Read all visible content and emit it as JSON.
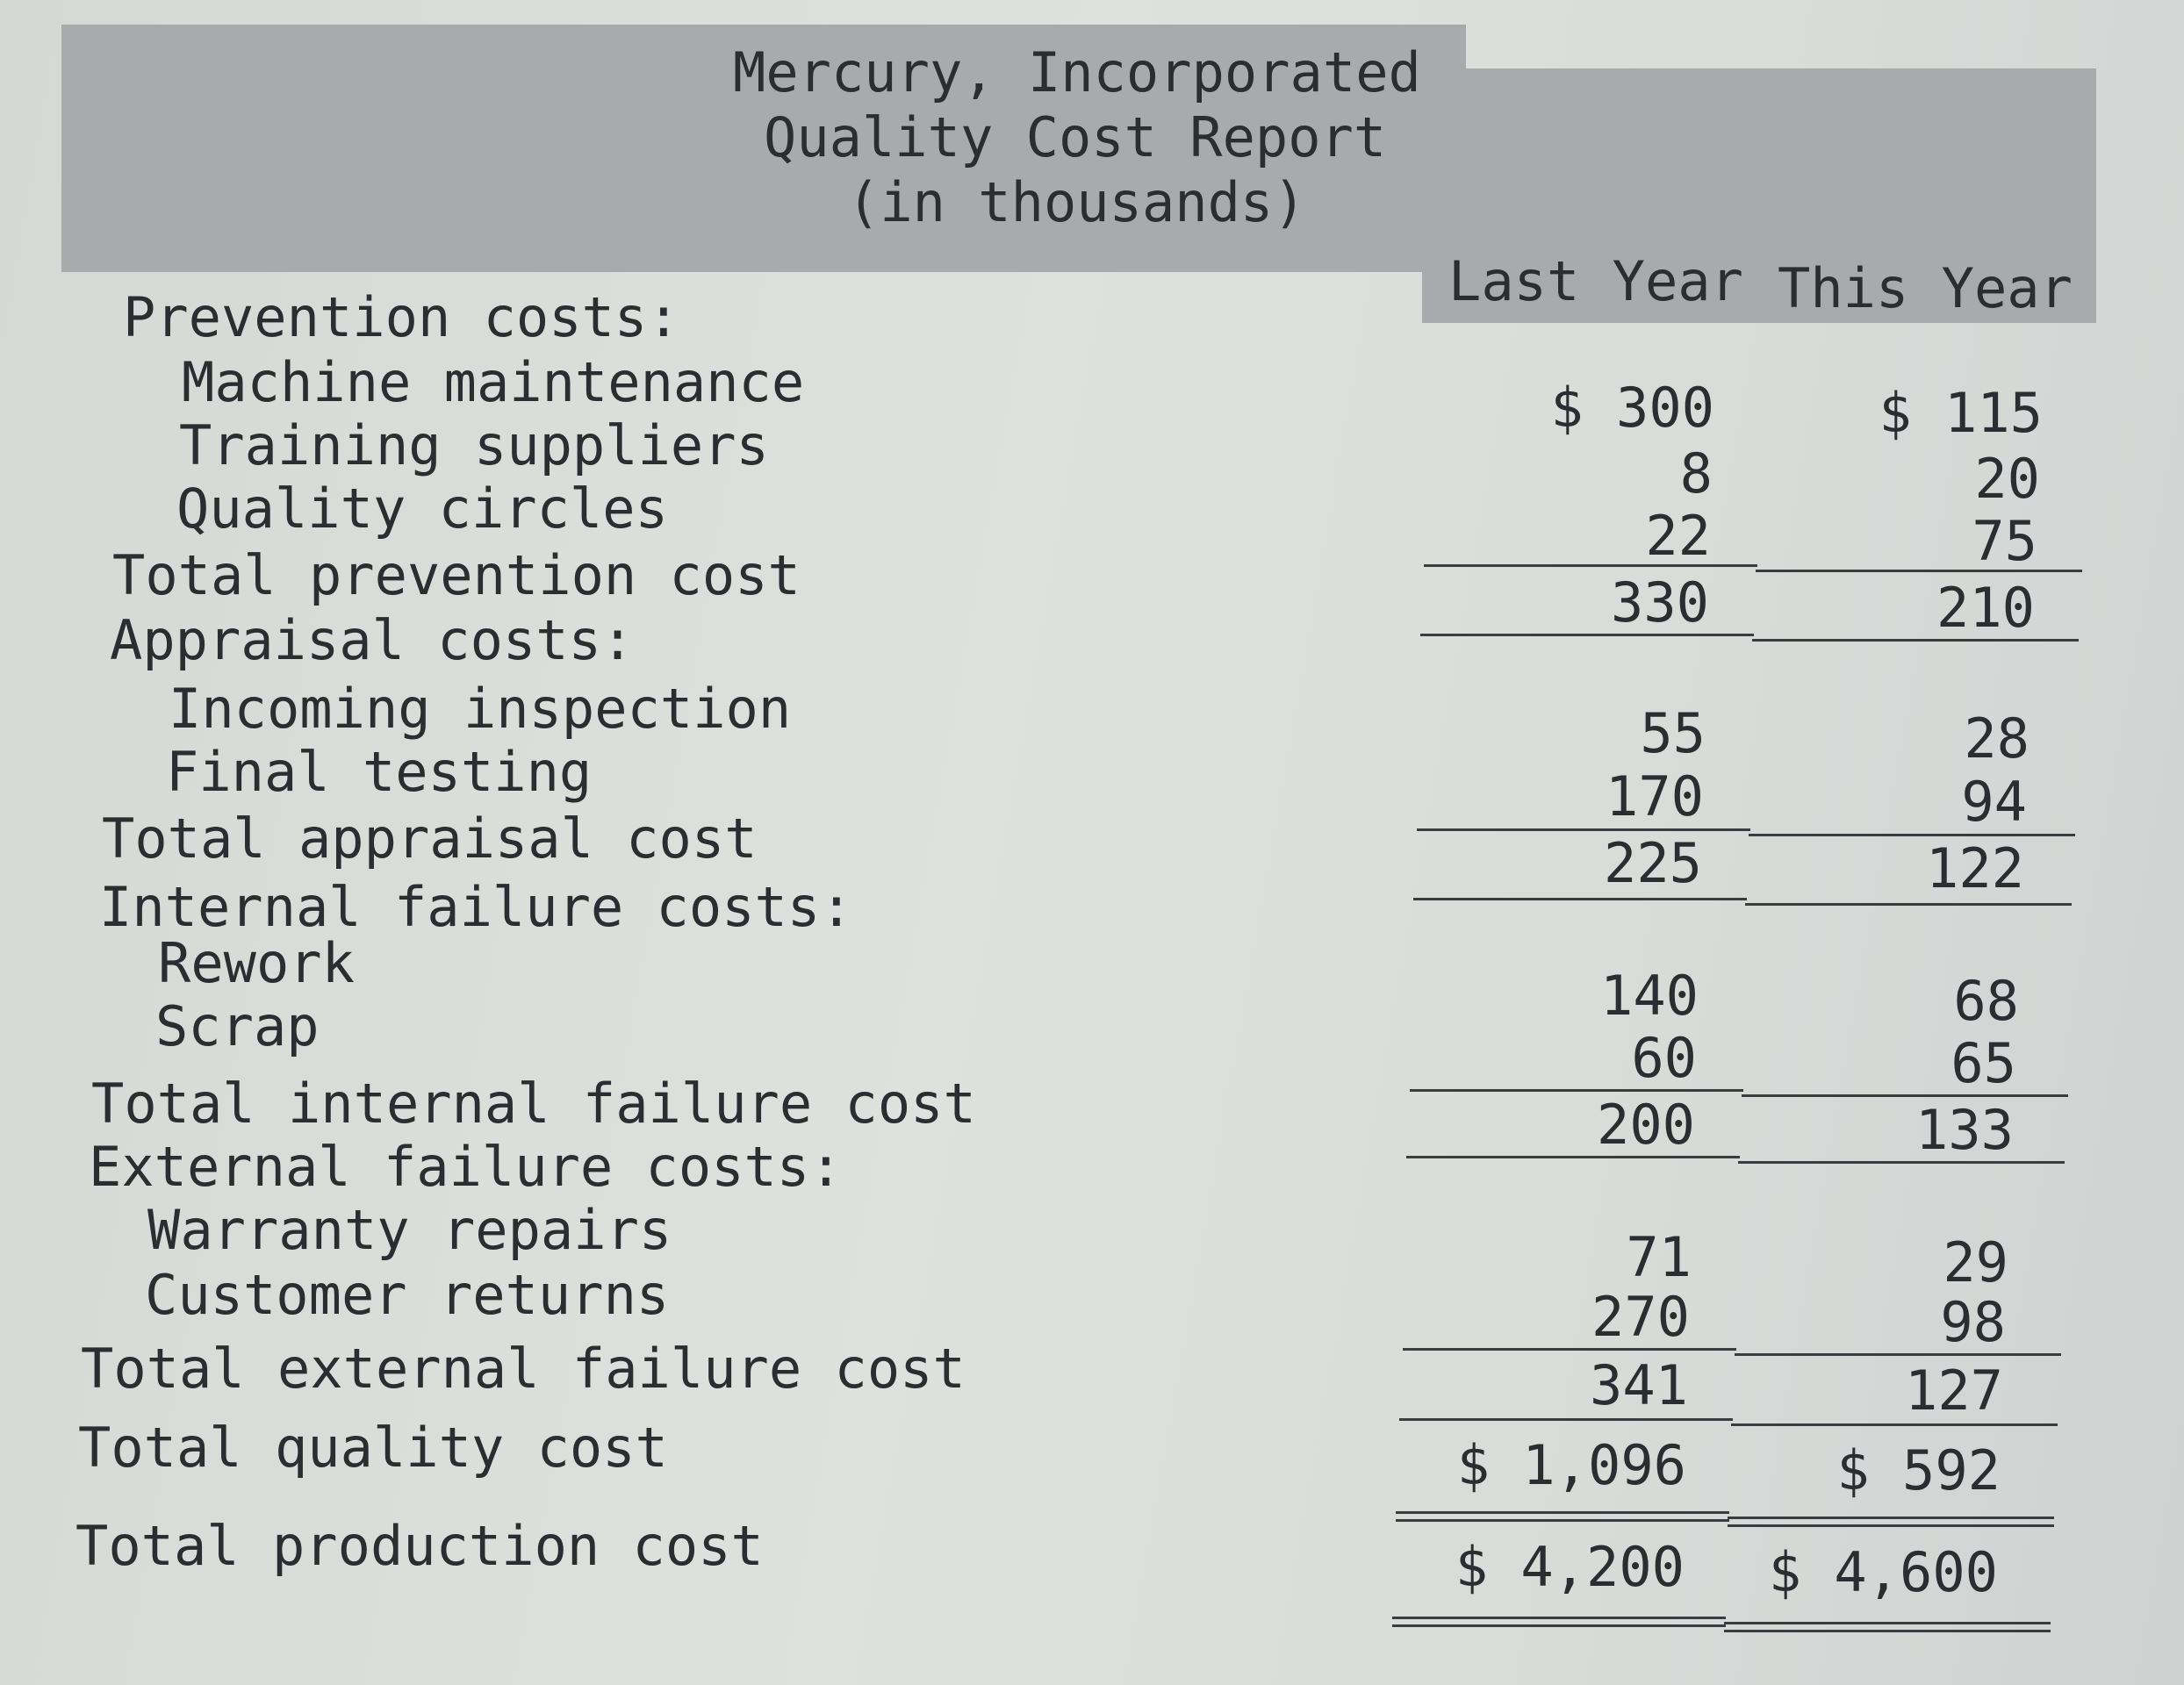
{
  "report": {
    "company": "Mercury, Incorporated",
    "title": "Quality Cost Report",
    "units": "(in thousands)",
    "columns": [
      "Last Year",
      "This Year"
    ]
  },
  "rows": [
    {
      "label": "Prevention costs:",
      "indent": 0,
      "last": "",
      "this": ""
    },
    {
      "label": "Machine maintenance",
      "indent": 1,
      "last": "$ 300",
      "this": "$ 115"
    },
    {
      "label": "Training suppliers",
      "indent": 1,
      "last": "8",
      "this": "20"
    },
    {
      "label": "Quality circles",
      "indent": 1,
      "last": "22",
      "this": "75"
    },
    {
      "label": "Total prevention cost",
      "indent": 0,
      "last": "330",
      "this": "210"
    },
    {
      "label": "Appraisal costs:",
      "indent": 0,
      "last": "",
      "this": ""
    },
    {
      "label": "Incoming inspection",
      "indent": 1,
      "last": "55",
      "this": "28"
    },
    {
      "label": "Final testing",
      "indent": 1,
      "last": "170",
      "this": "94"
    },
    {
      "label": "Total appraisal cost",
      "indent": 0,
      "last": "225",
      "this": "122"
    },
    {
      "label": "Internal failure costs:",
      "indent": 0,
      "last": "",
      "this": ""
    },
    {
      "label": "Rework",
      "indent": 1,
      "last": "140",
      "this": "68"
    },
    {
      "label": "Scrap",
      "indent": 1,
      "last": "60",
      "this": "65"
    },
    {
      "label": "Total internal failure cost",
      "indent": 0,
      "last": "200",
      "this": "133"
    },
    {
      "label": "External failure costs:",
      "indent": 0,
      "last": "",
      "this": ""
    },
    {
      "label": "Warranty repairs",
      "indent": 1,
      "last": "71",
      "this": "29"
    },
    {
      "label": "Customer returns",
      "indent": 1,
      "last": "270",
      "this": "98"
    },
    {
      "label": "Total external failure cost",
      "indent": 0,
      "last": "341",
      "this": "127"
    },
    {
      "label": "Total quality cost",
      "indent": 0,
      "last": "$ 1,096",
      "this": "$ 592"
    },
    {
      "label": "Total production cost",
      "indent": 0,
      "last": "$ 4,200",
      "this": "$ 4,600"
    }
  ]
}
